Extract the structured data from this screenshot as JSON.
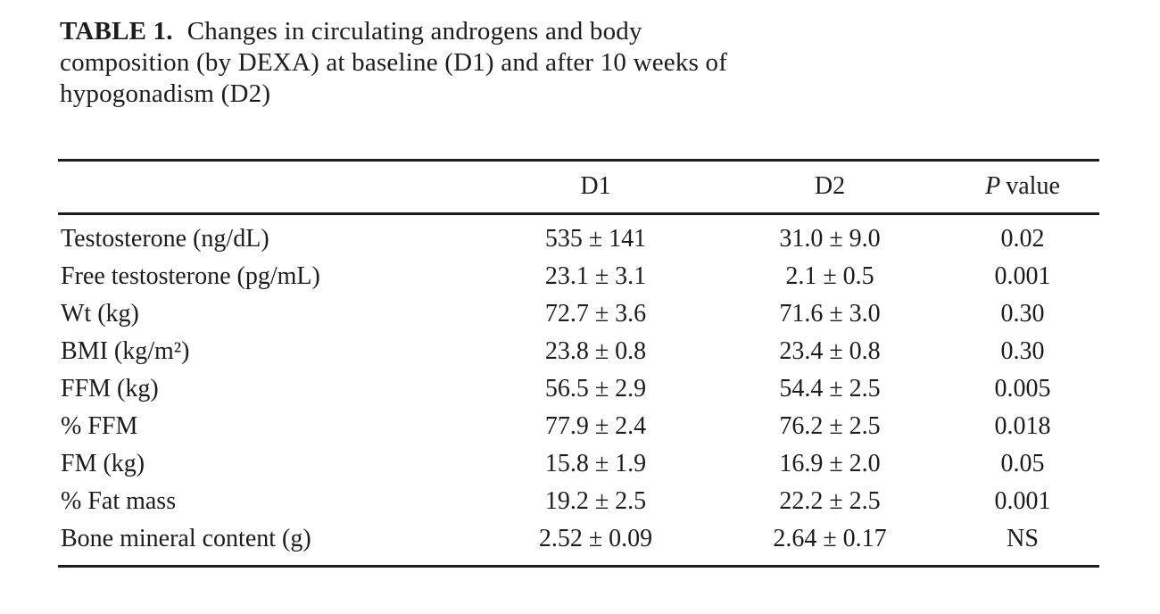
{
  "title": {
    "label": "TABLE 1.",
    "line1": "Changes in circulating androgens and body",
    "line2": "composition (by DEXA) at baseline (D1) and after 10 weeks of",
    "line3": "hypogonadism (D2)"
  },
  "table": {
    "headers": {
      "label": "",
      "d1": "D1",
      "d2": "D2",
      "p_italic": "P",
      "p_rest": "value"
    },
    "rows": [
      {
        "label": "Testosterone (ng/dL)",
        "d1": "535 ± 141",
        "d2": "31.0 ± 9.0",
        "p": "0.02"
      },
      {
        "label": "Free testosterone (pg/mL)",
        "d1": "23.1 ± 3.1",
        "d2": "2.1 ± 0.5",
        "p": "0.001"
      },
      {
        "label": "Wt (kg)",
        "d1": "72.7 ± 3.6",
        "d2": "71.6 ± 3.0",
        "p": "0.30"
      },
      {
        "label": "BMI (kg/m²)",
        "d1": "23.8 ± 0.8",
        "d2": "23.4 ± 0.8",
        "p": "0.30"
      },
      {
        "label": "FFM (kg)",
        "d1": "56.5 ± 2.9",
        "d2": "54.4 ± 2.5",
        "p": "0.005"
      },
      {
        "label": "% FFM",
        "d1": "77.9 ± 2.4",
        "d2": "76.2 ± 2.5",
        "p": "0.018"
      },
      {
        "label": "FM (kg)",
        "d1": "15.8 ± 1.9",
        "d2": "16.9 ± 2.0",
        "p": "0.05"
      },
      {
        "label": "% Fat mass",
        "d1": "19.2 ± 2.5",
        "d2": "22.2 ± 2.5",
        "p": "0.001"
      },
      {
        "label": "Bone mineral content (g)",
        "d1": "2.52 ± 0.09",
        "d2": "2.64 ± 0.17",
        "p": "NS"
      }
    ]
  },
  "colors": {
    "background": "#ffffff",
    "text": "#1c1c1c",
    "rule": "#1c1c1c"
  }
}
